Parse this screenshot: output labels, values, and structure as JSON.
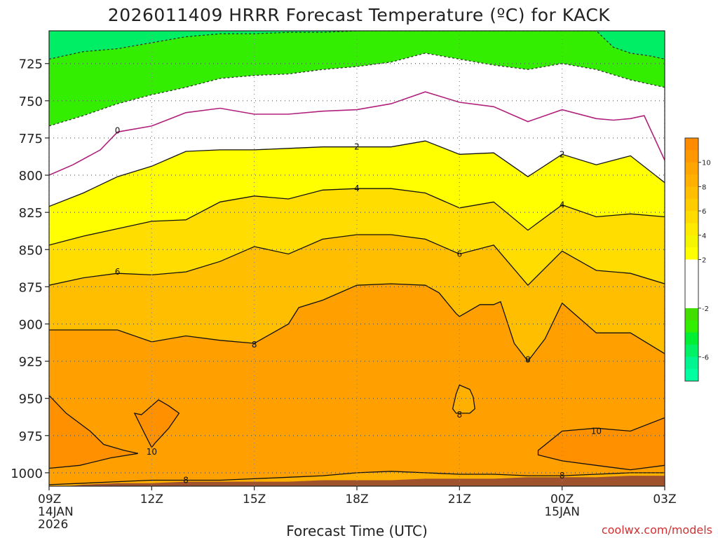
{
  "chart_data": {
    "type": "heatmap",
    "title": "2026011409 HRRR Forecast Temperature (ºC) for KACK",
    "xlabel": "Forecast Time (UTC)",
    "ylabel": "",
    "credit": "coolwx.com/models",
    "x_hours": [
      0,
      3,
      6,
      9,
      12,
      15,
      18
    ],
    "xticks": [
      {
        "hour": 0,
        "lines": [
          "09Z",
          "14JAN",
          "2026"
        ]
      },
      {
        "hour": 3,
        "lines": [
          "12Z"
        ]
      },
      {
        "hour": 6,
        "lines": [
          "15Z"
        ]
      },
      {
        "hour": 9,
        "lines": [
          "18Z"
        ]
      },
      {
        "hour": 12,
        "lines": [
          "21Z"
        ]
      },
      {
        "hour": 15,
        "lines": [
          "00Z",
          "15JAN"
        ]
      },
      {
        "hour": 18,
        "lines": [
          "03Z"
        ]
      }
    ],
    "yticks": [
      725,
      750,
      775,
      800,
      825,
      850,
      875,
      900,
      925,
      950,
      975,
      1000
    ],
    "ylim_hpa": [
      1009,
      703
    ],
    "xlim_hours": [
      0,
      18
    ],
    "colorbar": {
      "ticks": [
        10,
        8,
        6,
        4,
        2,
        -2,
        -6
      ],
      "bands": [
        {
          "range": [
            11,
            12
          ],
          "color": "#ff8c00"
        },
        {
          "range": [
            10,
            11
          ],
          "color": "#ff9800"
        },
        {
          "range": [
            9,
            10
          ],
          "color": "#ffa500"
        },
        {
          "range": [
            8,
            9
          ],
          "color": "#ffb000"
        },
        {
          "range": [
            7,
            8
          ],
          "color": "#ffbf00"
        },
        {
          "range": [
            6,
            7
          ],
          "color": "#ffcc00"
        },
        {
          "range": [
            5,
            6
          ],
          "color": "#ffdb00"
        },
        {
          "range": [
            4,
            5
          ],
          "color": "#ffea00"
        },
        {
          "range": [
            3,
            4
          ],
          "color": "#f5f500"
        },
        {
          "range": [
            2,
            3
          ],
          "color": "#ffff00"
        },
        {
          "range": [
            0,
            2
          ],
          "color": "#ffffff"
        },
        {
          "range": [
            -2,
            0
          ],
          "color": "#ffffff"
        },
        {
          "range": [
            -3,
            -2
          ],
          "color": "#44dd00"
        },
        {
          "range": [
            -4,
            -3
          ],
          "color": "#33ee00"
        },
        {
          "range": [
            -5,
            -4
          ],
          "color": "#00ee33"
        },
        {
          "range": [
            -6,
            -5
          ],
          "color": "#00f066"
        },
        {
          "range": [
            -7,
            -6
          ],
          "color": "#00f590"
        },
        {
          "range": [
            -8,
            -7
          ],
          "color": "#00ffa0"
        }
      ]
    },
    "contours": [
      {
        "level": -2,
        "style": "dashed",
        "color": "#333333",
        "fill": "#33ee00",
        "fill_top": true,
        "points": [
          [
            0,
            767
          ],
          [
            1,
            760
          ],
          [
            2,
            752
          ],
          [
            3,
            746
          ],
          [
            4,
            741
          ],
          [
            5,
            735
          ],
          [
            6,
            733
          ],
          [
            7,
            732
          ],
          [
            8,
            729
          ],
          [
            9,
            727
          ],
          [
            10,
            724
          ],
          [
            11,
            718
          ],
          [
            12,
            722
          ],
          [
            13,
            726
          ],
          [
            14,
            729
          ],
          [
            15,
            725
          ],
          [
            16,
            729
          ],
          [
            17,
            736
          ],
          [
            18,
            741
          ]
        ]
      },
      {
        "level": -6,
        "style": "dashed",
        "color": "#333333",
        "fill": "#00ee66",
        "fill_top": true,
        "points": [
          [
            0,
            722
          ],
          [
            1,
            717
          ],
          [
            2,
            715
          ],
          [
            3,
            711
          ],
          [
            4,
            707
          ],
          [
            5,
            705
          ],
          [
            6,
            705
          ],
          [
            7,
            704
          ],
          [
            8,
            704
          ],
          [
            9,
            703
          ],
          [
            10,
            703
          ],
          [
            11,
            703
          ],
          [
            12,
            703
          ],
          [
            13,
            703
          ],
          [
            14,
            703
          ],
          [
            15,
            703
          ],
          [
            16,
            703
          ],
          [
            16.5,
            714
          ],
          [
            17,
            718
          ],
          [
            17.6,
            720
          ],
          [
            18,
            722
          ]
        ]
      },
      {
        "level": 0,
        "style": "solid",
        "color": "#b0207a",
        "points": [
          [
            0,
            800
          ],
          [
            0.7,
            793
          ],
          [
            1.5,
            783
          ],
          [
            2,
            771
          ],
          [
            3,
            767
          ],
          [
            4,
            758
          ],
          [
            5,
            755
          ],
          [
            6,
            759
          ],
          [
            7,
            759
          ],
          [
            8,
            757
          ],
          [
            9,
            756
          ],
          [
            10,
            752
          ],
          [
            11,
            744
          ],
          [
            12,
            751
          ],
          [
            13,
            754
          ],
          [
            14,
            764
          ],
          [
            15,
            756
          ],
          [
            16,
            762
          ],
          [
            16.5,
            763
          ],
          [
            17,
            762
          ],
          [
            17.4,
            760
          ],
          [
            18,
            790
          ]
        ],
        "label_at": [
          [
            2,
            770
          ]
        ]
      },
      {
        "level": 2,
        "style": "solid",
        "color": "#111111",
        "fill": "#ffff00",
        "points": [
          [
            0,
            821
          ],
          [
            1,
            812
          ],
          [
            2,
            801
          ],
          [
            3,
            794
          ],
          [
            4,
            784
          ],
          [
            5,
            783
          ],
          [
            6,
            783
          ],
          [
            7,
            782
          ],
          [
            8,
            781
          ],
          [
            9,
            781
          ],
          [
            10,
            781
          ],
          [
            11,
            777
          ],
          [
            12,
            786
          ],
          [
            13,
            785
          ],
          [
            14,
            801
          ],
          [
            15,
            786
          ],
          [
            16,
            793
          ],
          [
            17,
            787
          ],
          [
            18,
            805
          ]
        ],
        "label_at": [
          [
            9,
            781
          ],
          [
            15,
            786
          ]
        ]
      },
      {
        "level": 4,
        "style": "solid",
        "color": "#111111",
        "fill": "#ffdd00",
        "points": [
          [
            0,
            847
          ],
          [
            1,
            841
          ],
          [
            2,
            836
          ],
          [
            3,
            831
          ],
          [
            4,
            830
          ],
          [
            5,
            818
          ],
          [
            6,
            814
          ],
          [
            7,
            816
          ],
          [
            8,
            810
          ],
          [
            9,
            809
          ],
          [
            10,
            809
          ],
          [
            11,
            812
          ],
          [
            12,
            822
          ],
          [
            13,
            818
          ],
          [
            14,
            837
          ],
          [
            15,
            820
          ],
          [
            16,
            828
          ],
          [
            17,
            826
          ],
          [
            18,
            828
          ]
        ],
        "label_at": [
          [
            9,
            809
          ],
          [
            15,
            820
          ]
        ]
      },
      {
        "level": 6,
        "style": "solid",
        "color": "#111111",
        "fill": "#ffbf00",
        "points": [
          [
            0,
            874
          ],
          [
            1,
            869
          ],
          [
            2,
            866
          ],
          [
            3,
            867
          ],
          [
            4,
            865
          ],
          [
            5,
            858
          ],
          [
            6,
            848
          ],
          [
            7,
            853
          ],
          [
            8,
            843
          ],
          [
            9,
            840
          ],
          [
            10,
            840
          ],
          [
            11,
            843
          ],
          [
            12,
            853
          ],
          [
            13,
            847
          ],
          [
            14,
            874
          ],
          [
            15,
            851
          ],
          [
            16,
            864
          ],
          [
            17,
            866
          ],
          [
            18,
            873
          ]
        ],
        "label_at": [
          [
            2,
            865
          ],
          [
            12,
            853
          ]
        ]
      },
      {
        "level": 8,
        "style": "solid",
        "color": "#111111",
        "fill": "#ffa500",
        "points": [
          [
            0,
            904
          ],
          [
            1,
            904
          ],
          [
            2,
            904
          ],
          [
            3,
            912
          ],
          [
            4,
            908
          ],
          [
            5,
            911
          ],
          [
            6,
            913
          ],
          [
            7,
            900
          ],
          [
            7.3,
            889
          ],
          [
            8,
            884
          ],
          [
            9,
            874
          ],
          [
            10,
            873
          ],
          [
            11,
            874
          ],
          [
            11.4,
            879
          ],
          [
            11.9,
            893
          ],
          [
            12,
            895
          ],
          [
            12.6,
            887
          ],
          [
            13,
            887
          ],
          [
            13.2,
            885
          ],
          [
            13.6,
            913
          ],
          [
            14,
            925
          ],
          [
            14.5,
            910
          ],
          [
            15,
            886
          ],
          [
            16,
            906
          ],
          [
            17,
            906
          ],
          [
            18,
            920
          ]
        ],
        "label_at": [
          [
            6,
            914
          ],
          [
            14,
            924
          ]
        ]
      },
      {
        "level": 8,
        "style": "solid",
        "color": "#111111",
        "closed": true,
        "points": [
          [
            12,
            941
          ],
          [
            12.3,
            944
          ],
          [
            12.4,
            949
          ],
          [
            12.45,
            957
          ],
          [
            12.3,
            960
          ],
          [
            11.9,
            960
          ],
          [
            11.8,
            957
          ],
          [
            11.9,
            947
          ]
        ],
        "label_at": [
          [
            12,
            961
          ]
        ]
      },
      {
        "level": 10,
        "style": "solid",
        "color": "#111111",
        "fill": "#ff9000",
        "closed": true,
        "points": [
          [
            0,
            948
          ],
          [
            0.5,
            960
          ],
          [
            1.2,
            972
          ],
          [
            1.6,
            981
          ],
          [
            2.2,
            985
          ],
          [
            2.6,
            987
          ],
          [
            1.8,
            990
          ],
          [
            0.9,
            995
          ],
          [
            0,
            997
          ]
        ],
        "label_at": []
      },
      {
        "level": 10,
        "style": "solid",
        "color": "#111111",
        "fill": "#ff9000",
        "closed": true,
        "points": [
          [
            2.7,
            961
          ],
          [
            3,
            955
          ],
          [
            3.2,
            951
          ],
          [
            3.5,
            955
          ],
          [
            3.8,
            960
          ],
          [
            3.5,
            970
          ],
          [
            3.1,
            980
          ],
          [
            3,
            983
          ],
          [
            2.8,
            974
          ],
          [
            2.5,
            960
          ]
        ],
        "label_at": [
          [
            3,
            986
          ]
        ]
      },
      {
        "level": 10,
        "style": "solid",
        "color": "#111111",
        "fill": "#ff9000",
        "closed": true,
        "points": [
          [
            14.3,
            985
          ],
          [
            15,
            972
          ],
          [
            16,
            970
          ],
          [
            17,
            972
          ],
          [
            18,
            963
          ],
          [
            18,
            995
          ],
          [
            17,
            998
          ],
          [
            16,
            995
          ],
          [
            15,
            992
          ],
          [
            14.3,
            988
          ]
        ],
        "label_at": [
          [
            16,
            972
          ]
        ]
      },
      {
        "level": 8,
        "style": "solid",
        "color": "#111111",
        "points": [
          [
            0,
            1008
          ],
          [
            1,
            1007
          ],
          [
            2,
            1006
          ],
          [
            3,
            1005
          ],
          [
            4,
            1005
          ],
          [
            5,
            1005
          ],
          [
            6,
            1004
          ],
          [
            7,
            1003
          ],
          [
            8,
            1002
          ],
          [
            9,
            1000
          ],
          [
            10,
            999
          ],
          [
            11,
            1000
          ],
          [
            12,
            1001
          ],
          [
            13,
            1001
          ],
          [
            14,
            1002
          ],
          [
            15,
            1002
          ],
          [
            16,
            1001
          ],
          [
            17,
            1000
          ],
          [
            18,
            1000
          ]
        ],
        "label_at": [
          [
            4,
            1005
          ],
          [
            15,
            1002
          ]
        ]
      }
    ],
    "ground": {
      "color": "#a0522d",
      "points": [
        [
          0,
          1010
        ],
        [
          1,
          1008
        ],
        [
          2,
          1007
        ],
        [
          3,
          1007
        ],
        [
          4,
          1006
        ],
        [
          5,
          1006
        ],
        [
          6,
          1006
        ],
        [
          7,
          1006
        ],
        [
          8,
          1005
        ],
        [
          9,
          1005
        ],
        [
          10,
          1005
        ],
        [
          11,
          1004
        ],
        [
          12,
          1004
        ],
        [
          13,
          1004
        ],
        [
          14,
          1003
        ],
        [
          15,
          1003
        ],
        [
          16,
          1003
        ],
        [
          17,
          1002
        ],
        [
          18,
          1002
        ]
      ]
    }
  }
}
